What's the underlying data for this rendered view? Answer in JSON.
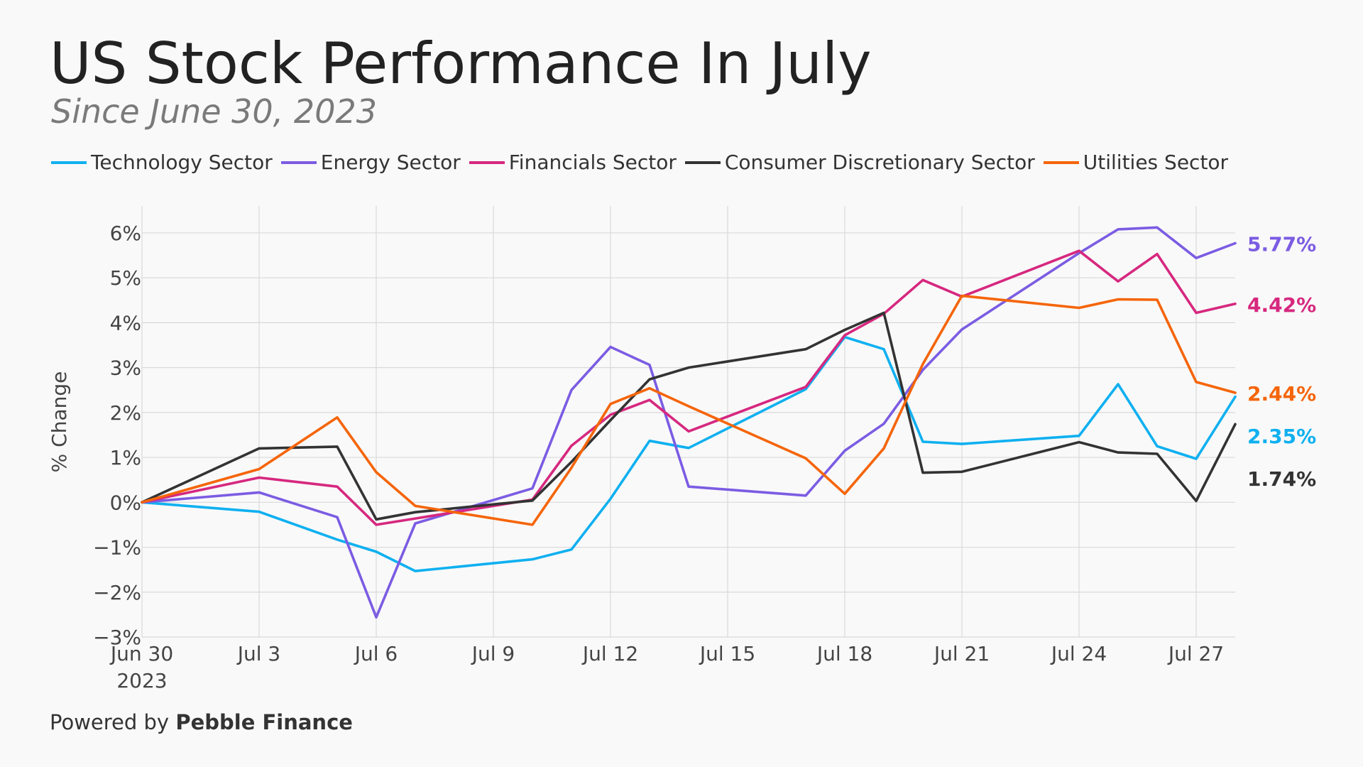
{
  "title": "US Stock Performance In July",
  "subtitle": "Since June 30, 2023",
  "footer": {
    "prefix": "Powered by ",
    "brand": "Pebble Finance"
  },
  "chart_data": {
    "type": "line",
    "ylabel": "% Change",
    "ylim": [
      -3,
      6.6
    ],
    "yticks": [
      -3,
      -2,
      -1,
      0,
      1,
      2,
      3,
      4,
      5,
      6
    ],
    "ytick_labels": [
      "−3%",
      "−2%",
      "−1%",
      "0%",
      "1%",
      "2%",
      "3%",
      "4%",
      "5%",
      "6%"
    ],
    "xlim": [
      "2023-06-30",
      "2023-07-28"
    ],
    "xticks": [
      "2023-06-30",
      "2023-07-03",
      "2023-07-06",
      "2023-07-09",
      "2023-07-12",
      "2023-07-15",
      "2023-07-18",
      "2023-07-21",
      "2023-07-24",
      "2023-07-27"
    ],
    "xtick_labels": [
      "Jun 30",
      "Jul 3",
      "Jul 6",
      "Jul 9",
      "Jul 12",
      "Jul 15",
      "Jul 18",
      "Jul 21",
      "Jul 24",
      "Jul 27"
    ],
    "xtick_sublabel": "2023",
    "grid": true,
    "legend_position": "top",
    "x": [
      "2023-06-30",
      "2023-07-03",
      "2023-07-05",
      "2023-07-06",
      "2023-07-07",
      "2023-07-10",
      "2023-07-11",
      "2023-07-12",
      "2023-07-13",
      "2023-07-14",
      "2023-07-17",
      "2023-07-18",
      "2023-07-19",
      "2023-07-20",
      "2023-07-21",
      "2023-07-24",
      "2023-07-25",
      "2023-07-26",
      "2023-07-27",
      "2023-07-28"
    ],
    "series": [
      {
        "name": "Technology Sector",
        "color": "#0fb0f0",
        "end_label": "2.35%",
        "values": [
          0,
          -0.21,
          -0.83,
          -1.1,
          -1.53,
          -1.27,
          -1.05,
          0.08,
          1.37,
          1.21,
          2.52,
          3.68,
          3.41,
          1.35,
          1.3,
          1.48,
          2.63,
          1.25,
          0.97,
          2.35
        ]
      },
      {
        "name": "Energy Sector",
        "color": "#7b5ce3",
        "end_label": "5.77%",
        "values": [
          0,
          0.22,
          -0.33,
          -2.56,
          -0.47,
          0.31,
          2.5,
          3.46,
          3.06,
          0.35,
          0.15,
          1.15,
          1.75,
          2.95,
          3.85,
          5.55,
          6.08,
          6.12,
          5.44,
          5.77
        ]
      },
      {
        "name": "Financials Sector",
        "color": "#d6287f",
        "end_label": "4.42%",
        "values": [
          0,
          0.55,
          0.35,
          -0.5,
          -0.36,
          0.06,
          1.26,
          1.95,
          2.28,
          1.58,
          2.57,
          3.72,
          4.2,
          4.95,
          4.58,
          5.6,
          4.92,
          5.53,
          4.22,
          4.42
        ]
      },
      {
        "name": "Consumer Discretionary Sector",
        "color": "#333333",
        "end_label": "1.74%",
        "values": [
          0,
          1.2,
          1.24,
          -0.38,
          -0.22,
          0.04,
          0.9,
          1.83,
          2.74,
          3.0,
          3.41,
          3.84,
          4.22,
          0.66,
          0.68,
          1.34,
          1.11,
          1.08,
          0.03,
          1.74
        ]
      },
      {
        "name": "Utilities Sector",
        "color": "#f5650a",
        "end_label": "2.44%",
        "values": [
          0,
          0.74,
          1.89,
          0.67,
          -0.08,
          -0.5,
          0.77,
          2.19,
          2.54,
          2.14,
          0.98,
          0.19,
          1.2,
          3.08,
          4.6,
          4.33,
          4.52,
          4.51,
          2.68,
          2.44
        ]
      }
    ]
  }
}
